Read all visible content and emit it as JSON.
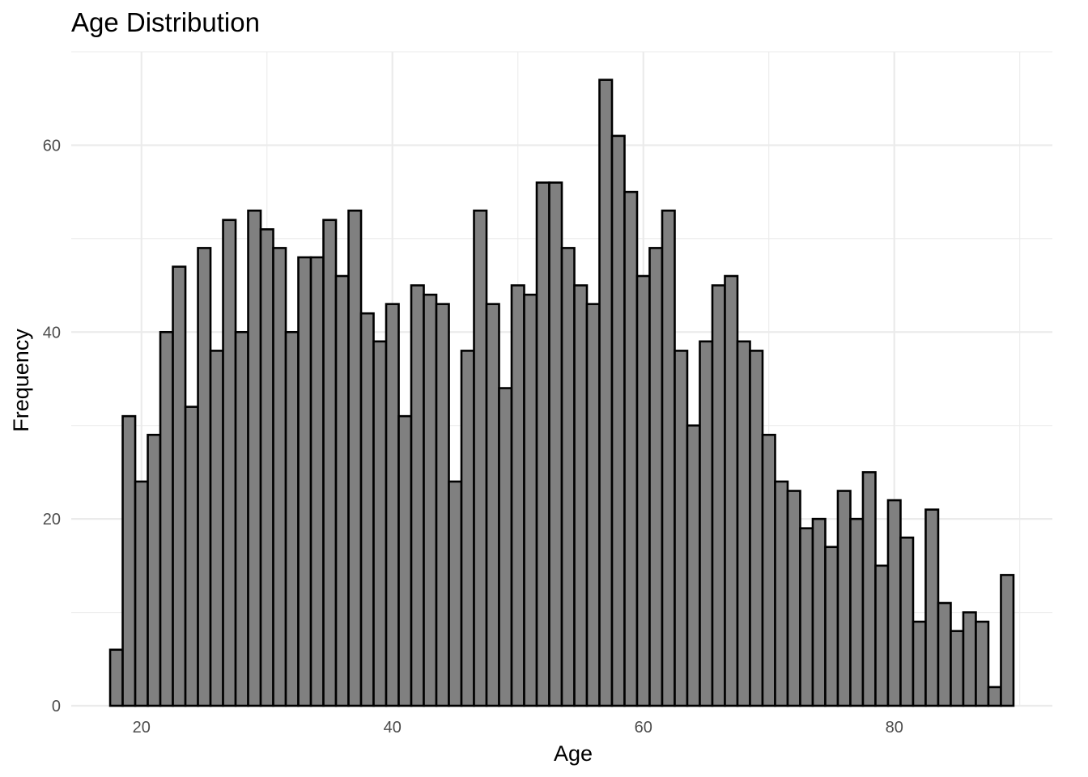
{
  "chart_data": {
    "type": "bar",
    "title": "Age Distribution",
    "xlabel": "Age",
    "ylabel": "Frequency",
    "xlim": [
      14.4,
      92.6
    ],
    "ylim": [
      0,
      70
    ],
    "x_ticks": [
      20,
      40,
      60,
      80
    ],
    "y_ticks": [
      0,
      20,
      40,
      60
    ],
    "grid": true,
    "legend": "none",
    "bin_width": 1,
    "bin_start": 17.5,
    "values": [
      6,
      31,
      24,
      29,
      40,
      47,
      32,
      49,
      38,
      52,
      40,
      53,
      51,
      49,
      40,
      48,
      48,
      52,
      46,
      53,
      42,
      39,
      43,
      31,
      45,
      44,
      43,
      24,
      38,
      53,
      43,
      34,
      45,
      44,
      56,
      56,
      49,
      45,
      43,
      67,
      61,
      55,
      46,
      49,
      53,
      38,
      30,
      39,
      45,
      46,
      39,
      38,
      29,
      24,
      23,
      19,
      20,
      17,
      23,
      20,
      25,
      15,
      22,
      18,
      9,
      21,
      11,
      8,
      10,
      9,
      2,
      14
    ],
    "bar_fill": "#808080",
    "bar_stroke": "#000000",
    "grid_color": "#ebebeb"
  }
}
